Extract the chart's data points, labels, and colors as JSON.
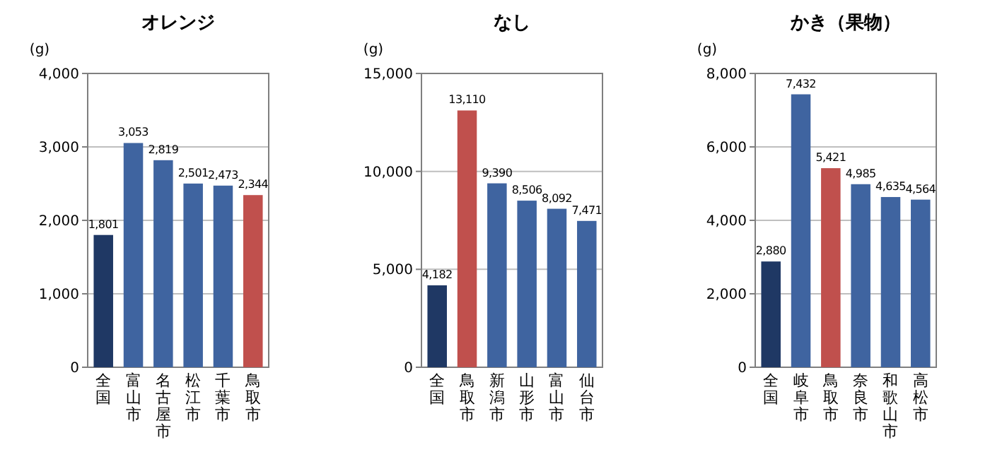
{
  "chart_data": [
    {
      "type": "bar",
      "title": "オレンジ",
      "ylabel": "(g)",
      "categories": [
        "全国",
        "富山市",
        "名古屋市",
        "松江市",
        "千葉市",
        "鳥取市"
      ],
      "values": [
        1801,
        3053,
        2819,
        2501,
        2473,
        2344
      ],
      "colors": [
        "#1f3864",
        "#3f64a0",
        "#3f64a0",
        "#3f64a0",
        "#3f64a0",
        "#c0504d"
      ],
      "ylim": [
        0,
        4000
      ],
      "yticks": [
        {
          "value": 0,
          "label": "0"
        },
        {
          "value": 1000,
          "label": "1,000"
        },
        {
          "value": 2000,
          "label": "2,000"
        },
        {
          "value": 3000,
          "label": "3,000"
        },
        {
          "value": 4000,
          "label": "4,000"
        }
      ],
      "grid": "y",
      "value_labels": [
        "1,801",
        "3,053",
        "2,819",
        "2,501",
        "2,473",
        "2,344"
      ]
    },
    {
      "type": "bar",
      "title": "なし",
      "ylabel": "(g)",
      "categories": [
        "全国",
        "鳥取市",
        "新潟市",
        "山形市",
        "富山市",
        "仙台市"
      ],
      "values": [
        4182,
        13110,
        9390,
        8506,
        8092,
        7471
      ],
      "colors": [
        "#1f3864",
        "#c0504d",
        "#3f64a0",
        "#3f64a0",
        "#3f64a0",
        "#3f64a0"
      ],
      "ylim": [
        0,
        15000
      ],
      "yticks": [
        {
          "value": 0,
          "label": "0"
        },
        {
          "value": 5000,
          "label": "5,000"
        },
        {
          "value": 10000,
          "label": "10,000"
        },
        {
          "value": 15000,
          "label": "15,000"
        }
      ],
      "grid": "y",
      "value_labels": [
        "4,182",
        "13,110",
        "9,390",
        "8,506",
        "8,092",
        "7,471"
      ]
    },
    {
      "type": "bar",
      "title": "かき（果物）",
      "ylabel": "(g)",
      "categories": [
        "全国",
        "岐阜市",
        "鳥取市",
        "奈良市",
        "和歌山市",
        "高松市"
      ],
      "values": [
        2880,
        7432,
        5421,
        4985,
        4635,
        4564
      ],
      "colors": [
        "#1f3864",
        "#3f64a0",
        "#c0504d",
        "#3f64a0",
        "#3f64a0",
        "#3f64a0"
      ],
      "ylim": [
        0,
        8000
      ],
      "yticks": [
        {
          "value": 0,
          "label": "0"
        },
        {
          "value": 2000,
          "label": "2,000"
        },
        {
          "value": 4000,
          "label": "4,000"
        },
        {
          "value": 6000,
          "label": "6,000"
        },
        {
          "value": 8000,
          "label": "8,000"
        }
      ],
      "grid": "y",
      "value_labels": [
        "2,880",
        "7,432",
        "5,421",
        "4,985",
        "4,635",
        "4,564"
      ]
    }
  ]
}
